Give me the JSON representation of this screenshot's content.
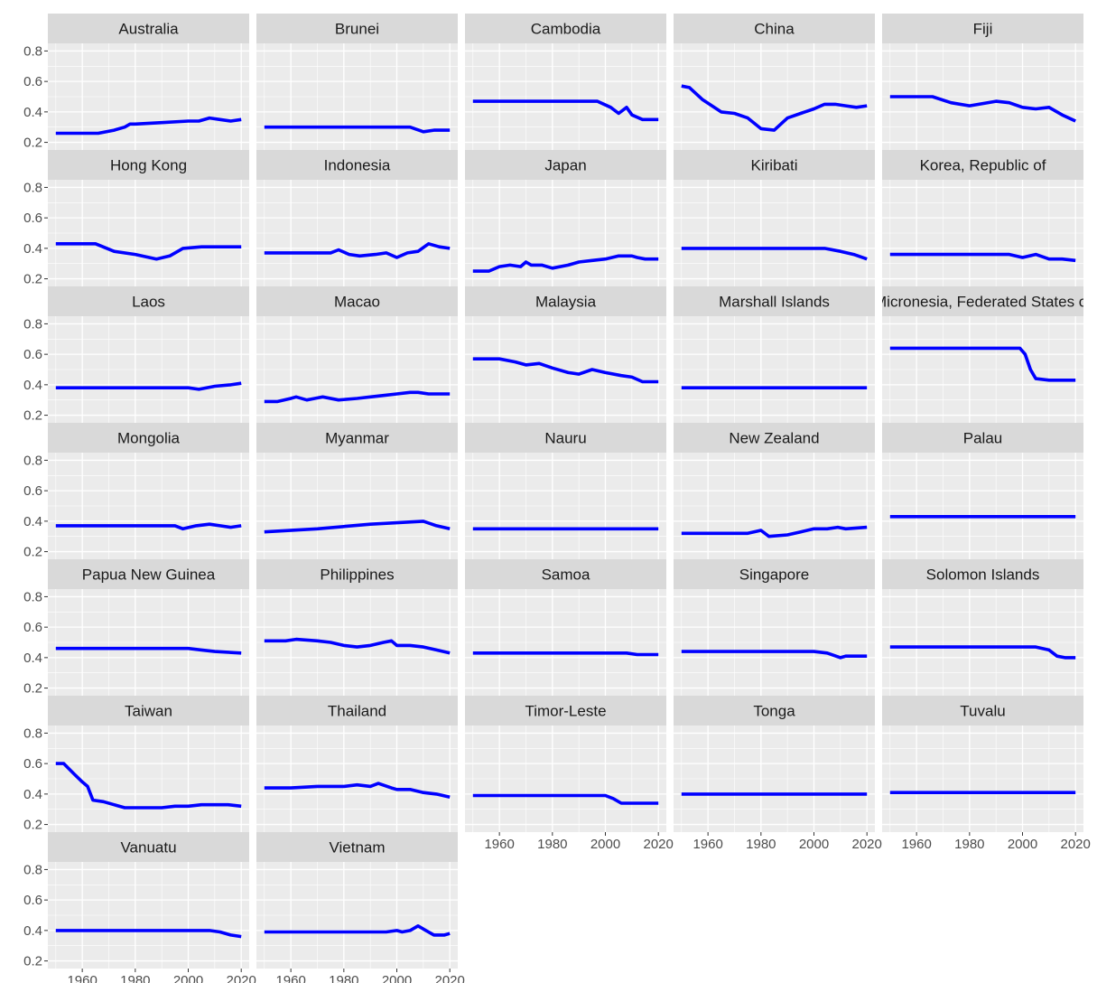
{
  "chart_data": {
    "type": "line",
    "layout": "facet-grid",
    "ncol": 5,
    "title": "",
    "xlabel": "",
    "ylabel": "",
    "xlim": [
      1947,
      2023
    ],
    "ylim": [
      0.15,
      0.85
    ],
    "x_ticks": [
      1960,
      1980,
      2000,
      2020
    ],
    "y_ticks": [
      0.2,
      0.4,
      0.6,
      0.8
    ],
    "x_tick_labels": [
      "1960",
      "1980",
      "2000",
      "2020"
    ],
    "y_tick_labels": [
      "0.2",
      "0.4",
      "0.6",
      "0.8"
    ],
    "line_color": "#0000ff",
    "panel_background": "#ebebeb",
    "strip_background": "#d9d9d9",
    "grid_color": "#ffffff",
    "grid": true,
    "panels": [
      {
        "name": "Australia",
        "x": [
          1950,
          1966,
          1972,
          1976,
          1978,
          1980,
          1990,
          2000,
          2004,
          2008,
          2012,
          2016,
          2020
        ],
        "y": [
          0.26,
          0.26,
          0.28,
          0.3,
          0.32,
          0.32,
          0.33,
          0.34,
          0.34,
          0.36,
          0.35,
          0.34,
          0.35
        ]
      },
      {
        "name": "Brunei",
        "x": [
          1950,
          2005,
          2010,
          2014,
          2020
        ],
        "y": [
          0.3,
          0.3,
          0.27,
          0.28,
          0.28
        ]
      },
      {
        "name": "Cambodia",
        "x": [
          1950,
          1997,
          2002,
          2005,
          2008,
          2010,
          2014,
          2020
        ],
        "y": [
          0.47,
          0.47,
          0.43,
          0.39,
          0.43,
          0.38,
          0.35,
          0.35
        ]
      },
      {
        "name": "China",
        "x": [
          1950,
          1953,
          1958,
          1965,
          1970,
          1975,
          1980,
          1985,
          1990,
          1995,
          2000,
          2004,
          2008,
          2012,
          2016,
          2020
        ],
        "y": [
          0.57,
          0.56,
          0.48,
          0.4,
          0.39,
          0.36,
          0.29,
          0.28,
          0.36,
          0.39,
          0.42,
          0.45,
          0.45,
          0.44,
          0.43,
          0.44
        ]
      },
      {
        "name": "Fiji",
        "x": [
          1950,
          1966,
          1973,
          1980,
          1990,
          1995,
          2000,
          2005,
          2010,
          2015,
          2020
        ],
        "y": [
          0.5,
          0.5,
          0.46,
          0.44,
          0.47,
          0.46,
          0.43,
          0.42,
          0.43,
          0.38,
          0.34
        ]
      },
      {
        "name": "Hong Kong",
        "x": [
          1950,
          1965,
          1972,
          1980,
          1988,
          1993,
          1998,
          2005,
          2010,
          2015,
          2020
        ],
        "y": [
          0.43,
          0.43,
          0.38,
          0.36,
          0.33,
          0.35,
          0.4,
          0.41,
          0.41,
          0.41,
          0.41
        ]
      },
      {
        "name": "Indonesia",
        "x": [
          1950,
          1975,
          1978,
          1982,
          1986,
          1992,
          1996,
          2000,
          2004,
          2008,
          2012,
          2016,
          2020
        ],
        "y": [
          0.37,
          0.37,
          0.39,
          0.36,
          0.35,
          0.36,
          0.37,
          0.34,
          0.37,
          0.38,
          0.43,
          0.41,
          0.4
        ]
      },
      {
        "name": "Japan",
        "x": [
          1950,
          1956,
          1960,
          1964,
          1968,
          1970,
          1972,
          1976,
          1980,
          1986,
          1990,
          1995,
          2000,
          2005,
          2010,
          2012,
          2015,
          2020
        ],
        "y": [
          0.25,
          0.25,
          0.28,
          0.29,
          0.28,
          0.31,
          0.29,
          0.29,
          0.27,
          0.29,
          0.31,
          0.32,
          0.33,
          0.35,
          0.35,
          0.34,
          0.33,
          0.33
        ]
      },
      {
        "name": "Kiribati",
        "x": [
          1950,
          2004,
          2010,
          2015,
          2020
        ],
        "y": [
          0.4,
          0.4,
          0.38,
          0.36,
          0.33
        ]
      },
      {
        "name": "Korea, Republic of",
        "x": [
          1950,
          1995,
          2000,
          2005,
          2010,
          2015,
          2020
        ],
        "y": [
          0.36,
          0.36,
          0.34,
          0.36,
          0.33,
          0.33,
          0.32
        ]
      },
      {
        "name": "Laos",
        "x": [
          1950,
          2000,
          2004,
          2010,
          2016,
          2020
        ],
        "y": [
          0.38,
          0.38,
          0.37,
          0.39,
          0.4,
          0.41
        ]
      },
      {
        "name": "Macao",
        "x": [
          1950,
          1955,
          1960,
          1962,
          1966,
          1969,
          1972,
          1978,
          1985,
          1990,
          1995,
          2000,
          2005,
          2008,
          2012,
          2016,
          2020
        ],
        "y": [
          0.29,
          0.29,
          0.31,
          0.32,
          0.3,
          0.31,
          0.32,
          0.3,
          0.31,
          0.32,
          0.33,
          0.34,
          0.35,
          0.35,
          0.34,
          0.34,
          0.34
        ]
      },
      {
        "name": "Malaysia",
        "x": [
          1950,
          1960,
          1966,
          1970,
          1975,
          1980,
          1986,
          1990,
          1995,
          2000,
          2006,
          2010,
          2014,
          2020
        ],
        "y": [
          0.57,
          0.57,
          0.55,
          0.53,
          0.54,
          0.51,
          0.48,
          0.47,
          0.5,
          0.48,
          0.46,
          0.45,
          0.42,
          0.42
        ]
      },
      {
        "name": "Marshall Islands",
        "x": [
          1950,
          2020
        ],
        "y": [
          0.38,
          0.38
        ]
      },
      {
        "name": "Micronesia, Federated States of",
        "x": [
          1950,
          1999,
          2001,
          2003,
          2005,
          2010,
          2015,
          2020
        ],
        "y": [
          0.64,
          0.64,
          0.6,
          0.5,
          0.44,
          0.43,
          0.43,
          0.43
        ]
      },
      {
        "name": "Mongolia",
        "x": [
          1950,
          1995,
          1998,
          2003,
          2008,
          2012,
          2016,
          2020
        ],
        "y": [
          0.37,
          0.37,
          0.35,
          0.37,
          0.38,
          0.37,
          0.36,
          0.37
        ]
      },
      {
        "name": "Myanmar",
        "x": [
          1950,
          1970,
          1990,
          2010,
          2015,
          2020
        ],
        "y": [
          0.33,
          0.35,
          0.38,
          0.4,
          0.37,
          0.35
        ]
      },
      {
        "name": "Nauru",
        "x": [
          1950,
          2020
        ],
        "y": [
          0.35,
          0.35
        ]
      },
      {
        "name": "New Zealand",
        "x": [
          1950,
          1975,
          1980,
          1983,
          1990,
          1995,
          2000,
          2005,
          2009,
          2012,
          2020
        ],
        "y": [
          0.32,
          0.32,
          0.34,
          0.3,
          0.31,
          0.33,
          0.35,
          0.35,
          0.36,
          0.35,
          0.36
        ]
      },
      {
        "name": "Palau",
        "x": [
          1950,
          2020
        ],
        "y": [
          0.43,
          0.43
        ]
      },
      {
        "name": "Papua New Guinea",
        "x": [
          1950,
          2000,
          2005,
          2010,
          2020
        ],
        "y": [
          0.46,
          0.46,
          0.45,
          0.44,
          0.43
        ]
      },
      {
        "name": "Philippines",
        "x": [
          1950,
          1958,
          1962,
          1970,
          1975,
          1980,
          1985,
          1990,
          1995,
          1998,
          2000,
          2005,
          2010,
          2015,
          2020
        ],
        "y": [
          0.51,
          0.51,
          0.52,
          0.51,
          0.5,
          0.48,
          0.47,
          0.48,
          0.5,
          0.51,
          0.48,
          0.48,
          0.47,
          0.45,
          0.43
        ]
      },
      {
        "name": "Samoa",
        "x": [
          1950,
          2008,
          2012,
          2020
        ],
        "y": [
          0.43,
          0.43,
          0.42,
          0.42
        ]
      },
      {
        "name": "Singapore",
        "x": [
          1950,
          2000,
          2005,
          2010,
          2012,
          2015,
          2020
        ],
        "y": [
          0.44,
          0.44,
          0.43,
          0.4,
          0.41,
          0.41,
          0.41
        ]
      },
      {
        "name": "Solomon Islands",
        "x": [
          1950,
          2005,
          2010,
          2013,
          2016,
          2020
        ],
        "y": [
          0.47,
          0.47,
          0.45,
          0.41,
          0.4,
          0.4
        ]
      },
      {
        "name": "Taiwan",
        "x": [
          1950,
          1953,
          1957,
          1960,
          1962,
          1964,
          1968,
          1972,
          1976,
          1980,
          1990,
          1995,
          2000,
          2005,
          2010,
          2015,
          2020
        ],
        "y": [
          0.6,
          0.6,
          0.53,
          0.48,
          0.45,
          0.36,
          0.35,
          0.33,
          0.31,
          0.31,
          0.31,
          0.32,
          0.32,
          0.33,
          0.33,
          0.33,
          0.32
        ]
      },
      {
        "name": "Thailand",
        "x": [
          1950,
          1960,
          1970,
          1980,
          1985,
          1990,
          1993,
          1998,
          2000,
          2005,
          2010,
          2015,
          2020
        ],
        "y": [
          0.44,
          0.44,
          0.45,
          0.45,
          0.46,
          0.45,
          0.47,
          0.44,
          0.43,
          0.43,
          0.41,
          0.4,
          0.38
        ]
      },
      {
        "name": "Timor-Leste",
        "x": [
          1950,
          2000,
          2003,
          2006,
          2012,
          2016,
          2020
        ],
        "y": [
          0.39,
          0.39,
          0.37,
          0.34,
          0.34,
          0.34,
          0.34
        ]
      },
      {
        "name": "Tonga",
        "x": [
          1950,
          2020
        ],
        "y": [
          0.4,
          0.4
        ]
      },
      {
        "name": "Tuvalu",
        "x": [
          1950,
          2020
        ],
        "y": [
          0.41,
          0.41
        ]
      },
      {
        "name": "Vanuatu",
        "x": [
          1950,
          2008,
          2012,
          2016,
          2020
        ],
        "y": [
          0.4,
          0.4,
          0.39,
          0.37,
          0.36
        ]
      },
      {
        "name": "Vietnam",
        "x": [
          1950,
          1996,
          2000,
          2002,
          2005,
          2008,
          2011,
          2014,
          2018,
          2020
        ],
        "y": [
          0.39,
          0.39,
          0.4,
          0.39,
          0.4,
          0.43,
          0.4,
          0.37,
          0.37,
          0.38
        ]
      }
    ]
  }
}
